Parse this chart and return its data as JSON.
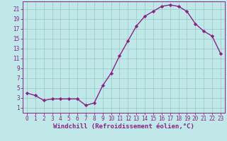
{
  "x": [
    0,
    1,
    2,
    3,
    4,
    5,
    6,
    7,
    8,
    9,
    10,
    11,
    12,
    13,
    14,
    15,
    16,
    17,
    18,
    19,
    20,
    21,
    22,
    23
  ],
  "y": [
    4,
    3.5,
    2.5,
    2.8,
    2.8,
    2.8,
    2.8,
    1.5,
    2,
    5.5,
    8,
    11.5,
    14.5,
    17.5,
    19.5,
    20.5,
    21.5,
    21.8,
    21.5,
    20.5,
    18,
    16.5,
    15.5,
    12
  ],
  "line_color": "#882288",
  "marker": "D",
  "marker_size": 2.2,
  "bg_color": "#c0e8e8",
  "grid_color": "#a0cccc",
  "xlabel": "Windchill (Refroidissement éolien,°C)",
  "xlim": [
    -0.5,
    23.5
  ],
  "ylim": [
    0,
    22.5
  ],
  "xticks": [
    0,
    1,
    2,
    3,
    4,
    5,
    6,
    7,
    8,
    9,
    10,
    11,
    12,
    13,
    14,
    15,
    16,
    17,
    18,
    19,
    20,
    21,
    22,
    23
  ],
  "yticks": [
    1,
    3,
    5,
    7,
    9,
    11,
    13,
    15,
    17,
    19,
    21
  ],
  "xlabel_fontsize": 6.5,
  "tick_fontsize": 5.5,
  "line_width": 1.0
}
